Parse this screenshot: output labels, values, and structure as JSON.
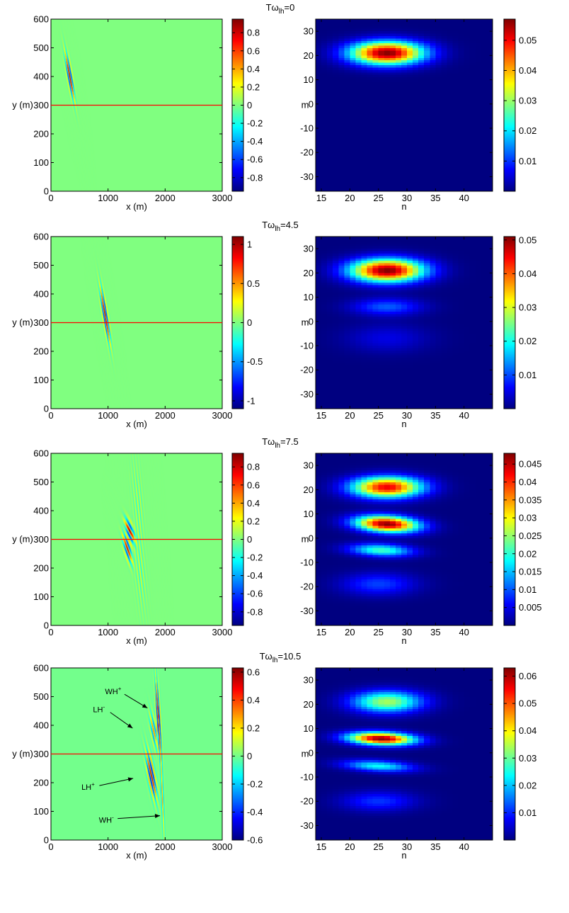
{
  "colormap": "jet",
  "rows": [
    {
      "title_prefix": "Tω",
      "title_sub": "lh",
      "title_value": "=0",
      "left": {
        "type": "heatmap",
        "xlabel": "x (m)",
        "ylabel": "y (m)",
        "xlim": [
          0,
          3000
        ],
        "ylim": [
          0,
          600
        ],
        "xticks": [
          0,
          1000,
          2000,
          3000
        ],
        "yticks": [
          0,
          100,
          200,
          300,
          400,
          500,
          600
        ],
        "reference_line_y": 300,
        "reference_line_color": "#ff0000",
        "background_value": 0,
        "colorbar": {
          "min": -0.95,
          "max": 0.95,
          "ticks": [
            -0.8,
            -0.6,
            -0.4,
            -0.2,
            0,
            0.2,
            0.4,
            0.6,
            0.8
          ],
          "labels": [
            "-0.8",
            "-0.6",
            "-0.4",
            "-0.2",
            "0",
            "0.2",
            "0.4",
            "0.6",
            "0.8"
          ]
        },
        "packets": [
          {
            "cx": 330,
            "cy": 400,
            "sx": 75,
            "sy": 22,
            "rot": -45,
            "amp": 0.95,
            "wavelength": 40
          }
        ],
        "annotations": []
      },
      "right": {
        "type": "heatmap",
        "xlabel": "n",
        "ylabel": "m",
        "xlim": [
          14,
          45
        ],
        "ylim": [
          -36,
          35
        ],
        "xticks": [
          15,
          20,
          25,
          30,
          35,
          40
        ],
        "yticks": [
          -30,
          -20,
          -10,
          0,
          10,
          20,
          30
        ],
        "colorbar": {
          "min": 0,
          "max": 0.057,
          "ticks": [
            0.01,
            0.02,
            0.03,
            0.04,
            0.05
          ],
          "labels": [
            "0.01",
            "0.02",
            "0.03",
            "0.04",
            "0.05"
          ]
        },
        "blobs": [
          {
            "n": 26.5,
            "m": 21,
            "sn": 4.5,
            "sm": 3.3,
            "amp": 0.057,
            "tilt": 0
          }
        ]
      }
    },
    {
      "title_prefix": "Tω",
      "title_sub": "lh",
      "title_value": "=4.5",
      "left": {
        "type": "heatmap",
        "xlabel": "x (m)",
        "ylabel": "y (m)",
        "xlim": [
          0,
          3000
        ],
        "ylim": [
          0,
          600
        ],
        "xticks": [
          0,
          1000,
          2000,
          3000
        ],
        "yticks": [
          0,
          100,
          200,
          300,
          400,
          500,
          600
        ],
        "reference_line_y": 300,
        "reference_line_color": "#ff0000",
        "background_value": 0,
        "colorbar": {
          "min": -1.1,
          "max": 1.1,
          "ticks": [
            -1,
            -0.5,
            0,
            0.5,
            1
          ],
          "labels": [
            "-1",
            "-0.5",
            "0",
            "0.5",
            "1"
          ]
        },
        "packets": [
          {
            "cx": 950,
            "cy": 325,
            "sx": 85,
            "sy": 24,
            "rot": -48,
            "amp": 1.1,
            "wavelength": 40
          }
        ],
        "annotations": []
      },
      "right": {
        "type": "heatmap",
        "xlabel": "n",
        "ylabel": "m",
        "xlim": [
          14,
          45
        ],
        "ylim": [
          -36,
          35
        ],
        "xticks": [
          15,
          20,
          25,
          30,
          35,
          40
        ],
        "yticks": [
          -30,
          -20,
          -10,
          0,
          10,
          20,
          30
        ],
        "colorbar": {
          "min": 0,
          "max": 0.051,
          "ticks": [
            0.01,
            0.02,
            0.03,
            0.04,
            0.05
          ],
          "labels": [
            "0.01",
            "0.02",
            "0.03",
            "0.04",
            "0.05"
          ]
        },
        "blobs": [
          {
            "n": 26.5,
            "m": 21,
            "sn": 4.5,
            "sm": 3.3,
            "amp": 0.051,
            "tilt": 0
          },
          {
            "n": 26.5,
            "m": 6,
            "sn": 4.2,
            "sm": 2.4,
            "amp": 0.011,
            "tilt": 0
          },
          {
            "n": 26.5,
            "m": -7,
            "sn": 5,
            "sm": 4,
            "amp": 0.005,
            "tilt": 0
          }
        ]
      }
    },
    {
      "title_prefix": "Tω",
      "title_sub": "lh",
      "title_value": "=7.5",
      "left": {
        "type": "heatmap",
        "xlabel": "x (m)",
        "ylabel": "y (m)",
        "xlim": [
          0,
          3000
        ],
        "ylim": [
          0,
          600
        ],
        "xticks": [
          0,
          1000,
          2000,
          3000
        ],
        "yticks": [
          0,
          100,
          200,
          300,
          400,
          500,
          600
        ],
        "reference_line_y": 300,
        "reference_line_color": "#ff0000",
        "background_value": 0,
        "colorbar": {
          "min": -0.95,
          "max": 0.95,
          "ticks": [
            -0.8,
            -0.6,
            -0.4,
            -0.2,
            0,
            0.2,
            0.4,
            0.6,
            0.8
          ],
          "labels": [
            "-0.8",
            "-0.6",
            "-0.4",
            "-0.2",
            "0",
            "0.2",
            "0.4",
            "0.6",
            "0.8"
          ]
        },
        "packets": [
          {
            "cx": 1380,
            "cy": 330,
            "sx": 60,
            "sy": 20,
            "rot": -20,
            "amp": 0.9,
            "wavelength": 38
          },
          {
            "cx": 1340,
            "cy": 268,
            "sx": 60,
            "sy": 22,
            "rot": -28,
            "amp": 0.85,
            "wavelength": 38
          },
          {
            "cx": 1520,
            "cy": 430,
            "sx": 95,
            "sy": 55,
            "rot": -62,
            "amp": 0.22,
            "wavelength": 42
          },
          {
            "cx": 1560,
            "cy": 190,
            "sx": 100,
            "sy": 60,
            "rot": -58,
            "amp": 0.22,
            "wavelength": 42
          }
        ],
        "annotations": []
      },
      "right": {
        "type": "heatmap",
        "xlabel": "n",
        "ylabel": "m",
        "xlim": [
          14,
          45
        ],
        "ylim": [
          -36,
          35
        ],
        "xticks": [
          15,
          20,
          25,
          30,
          35,
          40
        ],
        "yticks": [
          -30,
          -20,
          -10,
          0,
          10,
          20,
          30
        ],
        "colorbar": {
          "min": 0,
          "max": 0.048,
          "ticks": [
            0.005,
            0.01,
            0.015,
            0.02,
            0.025,
            0.03,
            0.035,
            0.04,
            0.045
          ],
          "labels": [
            "0.005",
            "0.01",
            "0.015",
            "0.02",
            "0.025",
            "0.03",
            "0.035",
            "0.04",
            "0.045"
          ]
        },
        "blobs": [
          {
            "n": 26.5,
            "m": 21,
            "sn": 4.3,
            "sm": 3.0,
            "amp": 0.043,
            "tilt": 0
          },
          {
            "n": 26.5,
            "m": 5.8,
            "sn": 3.8,
            "sm": 2.3,
            "amp": 0.048,
            "tilt": -0.12
          },
          {
            "n": 25.5,
            "m": -5,
            "sn": 3.8,
            "sm": 1.8,
            "amp": 0.021,
            "tilt": -0.1
          },
          {
            "n": 25,
            "m": -19,
            "sn": 4.5,
            "sm": 3.2,
            "amp": 0.009,
            "tilt": 0
          }
        ]
      }
    },
    {
      "title_prefix": "Tω",
      "title_sub": "lh",
      "title_value": "=10.5",
      "left": {
        "type": "heatmap",
        "xlabel": "x (m)",
        "ylabel": "y (m)",
        "xlim": [
          0,
          3000
        ],
        "ylim": [
          0,
          600
        ],
        "xticks": [
          0,
          1000,
          2000,
          3000
        ],
        "yticks": [
          0,
          100,
          200,
          300,
          400,
          500,
          600
        ],
        "reference_line_y": 300,
        "reference_line_color": "#ff0000",
        "background_value": 0,
        "colorbar": {
          "min": -0.6,
          "max": 0.63,
          "ticks": [
            -0.6,
            -0.4,
            -0.2,
            0,
            0.2,
            0.4,
            0.6
          ],
          "labels": [
            "-0.6",
            "-0.4",
            "-0.2",
            "0",
            "0.2",
            "0.4",
            "0.6"
          ]
        },
        "packets": [
          {
            "cx": 1880,
            "cy": 430,
            "sx": 95,
            "sy": 26,
            "rot": -72,
            "amp": 0.6,
            "wavelength": 40
          },
          {
            "cx": 1800,
            "cy": 380,
            "sx": 60,
            "sy": 28,
            "rot": -40,
            "amp": 0.35,
            "wavelength": 40
          },
          {
            "cx": 1760,
            "cy": 225,
            "sx": 80,
            "sy": 32,
            "rot": -40,
            "amp": 0.6,
            "wavelength": 40
          },
          {
            "cx": 1950,
            "cy": 160,
            "sx": 100,
            "sy": 22,
            "rot": -78,
            "amp": 0.3,
            "wavelength": 44
          }
        ],
        "annotations": [
          {
            "base": "WH",
            "sup": "+",
            "text_x": 1090,
            "text_y": 518,
            "arrow_x": 1690,
            "arrow_y": 460
          },
          {
            "base": "LH",
            "sup": "-",
            "text_x": 840,
            "text_y": 455,
            "arrow_x": 1430,
            "arrow_y": 390
          },
          {
            "base": "LH",
            "sup": "+",
            "text_x": 650,
            "text_y": 185,
            "arrow_x": 1440,
            "arrow_y": 215
          },
          {
            "base": "WH",
            "sup": "-",
            "text_x": 970,
            "text_y": 70,
            "arrow_x": 1910,
            "arrow_y": 85
          }
        ]
      },
      "right": {
        "type": "heatmap",
        "xlabel": "n",
        "ylabel": "m",
        "xlim": [
          14,
          45
        ],
        "ylim": [
          -36,
          35
        ],
        "xticks": [
          15,
          20,
          25,
          30,
          35,
          40
        ],
        "yticks": [
          -30,
          -20,
          -10,
          0,
          10,
          20,
          30
        ],
        "colorbar": {
          "min": 0,
          "max": 0.063,
          "ticks": [
            0.01,
            0.02,
            0.03,
            0.04,
            0.05,
            0.06
          ],
          "labels": [
            "0.01",
            "0.02",
            "0.03",
            "0.04",
            "0.05",
            "0.06"
          ]
        },
        "blobs": [
          {
            "n": 26.5,
            "m": 21,
            "sn": 4.3,
            "sm": 3.1,
            "amp": 0.034,
            "tilt": 0
          },
          {
            "n": 25.5,
            "m": 5.8,
            "sn": 4.0,
            "sm": 1.8,
            "amp": 0.063,
            "tilt": -0.08
          },
          {
            "n": 25,
            "m": -5.5,
            "sn": 4.2,
            "sm": 1.6,
            "amp": 0.024,
            "tilt": -0.12
          },
          {
            "n": 25,
            "m": -20,
            "sn": 4.5,
            "sm": 2.8,
            "amp": 0.011,
            "tilt": 0
          }
        ]
      }
    }
  ]
}
